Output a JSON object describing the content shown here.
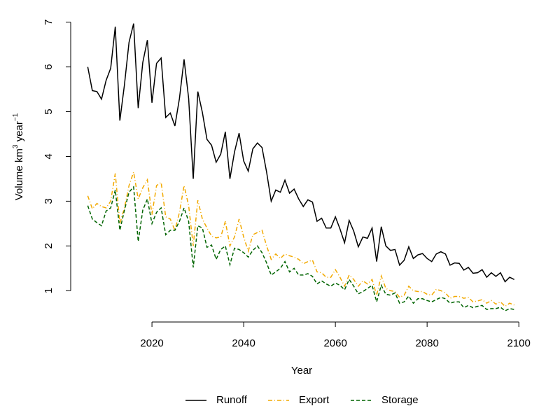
{
  "chart_data": {
    "type": "line",
    "x_label": "Year",
    "y_label_parts": [
      "Volume  km",
      "3",
      "  year",
      "−1"
    ],
    "x": [
      2006,
      2007,
      2008,
      2009,
      2010,
      2011,
      2012,
      2013,
      2014,
      2015,
      2016,
      2017,
      2018,
      2019,
      2020,
      2021,
      2022,
      2023,
      2024,
      2025,
      2026,
      2027,
      2028,
      2029,
      2030,
      2031,
      2032,
      2033,
      2034,
      2035,
      2036,
      2037,
      2038,
      2039,
      2040,
      2041,
      2042,
      2043,
      2044,
      2045,
      2046,
      2047,
      2048,
      2049,
      2050,
      2051,
      2052,
      2053,
      2054,
      2055,
      2056,
      2057,
      2058,
      2059,
      2060,
      2061,
      2062,
      2063,
      2064,
      2065,
      2066,
      2067,
      2068,
      2069,
      2070,
      2071,
      2072,
      2073,
      2074,
      2075,
      2076,
      2077,
      2078,
      2079,
      2080,
      2081,
      2082,
      2083,
      2084,
      2085,
      2086,
      2087,
      2088,
      2089,
      2090,
      2091,
      2092,
      2093,
      2094,
      2095,
      2096,
      2097,
      2098,
      2099
    ],
    "series": [
      {
        "name": "Runoff",
        "color": "#000000",
        "linestyle": "solid",
        "values": [
          6.0,
          5.47,
          5.45,
          5.28,
          5.7,
          5.97,
          6.9,
          4.8,
          5.6,
          6.55,
          6.97,
          5.08,
          6.1,
          6.6,
          5.2,
          6.08,
          6.2,
          4.87,
          4.97,
          4.68,
          5.3,
          6.17,
          5.3,
          3.5,
          5.45,
          4.98,
          4.38,
          4.25,
          3.87,
          4.05,
          4.55,
          3.5,
          4.1,
          4.52,
          3.9,
          3.67,
          4.17,
          4.3,
          4.2,
          3.65,
          3.0,
          3.25,
          3.2,
          3.47,
          3.18,
          3.27,
          3.05,
          2.88,
          3.03,
          2.98,
          2.55,
          2.62,
          2.4,
          2.4,
          2.65,
          2.38,
          2.07,
          2.57,
          2.33,
          1.98,
          2.2,
          2.17,
          2.4,
          1.65,
          2.43,
          2.0,
          1.9,
          1.92,
          1.57,
          1.68,
          1.98,
          1.72,
          1.8,
          1.83,
          1.72,
          1.65,
          1.82,
          1.87,
          1.82,
          1.57,
          1.62,
          1.61,
          1.46,
          1.52,
          1.39,
          1.4,
          1.47,
          1.3,
          1.4,
          1.32,
          1.4,
          1.2,
          1.3,
          1.25
        ]
      },
      {
        "name": "Export",
        "color": "#f2a900",
        "linestyle": "dotdash",
        "values": [
          3.12,
          2.83,
          2.95,
          2.88,
          2.85,
          3.0,
          3.62,
          2.5,
          2.85,
          3.35,
          3.65,
          3.05,
          3.3,
          3.48,
          2.7,
          3.35,
          3.42,
          2.65,
          2.6,
          2.35,
          2.75,
          3.35,
          2.9,
          2.0,
          3.02,
          2.6,
          2.4,
          2.22,
          2.18,
          2.2,
          2.55,
          2.0,
          2.2,
          2.6,
          2.2,
          1.88,
          2.25,
          2.3,
          2.35,
          2.0,
          1.7,
          1.82,
          1.72,
          1.82,
          1.78,
          1.75,
          1.7,
          1.6,
          1.65,
          1.68,
          1.42,
          1.4,
          1.3,
          1.3,
          1.47,
          1.3,
          1.1,
          1.35,
          1.25,
          1.1,
          1.22,
          1.15,
          1.25,
          0.9,
          1.33,
          1.05,
          1.0,
          0.98,
          0.85,
          0.9,
          1.1,
          1.0,
          0.98,
          0.98,
          0.92,
          0.9,
          1.03,
          1.0,
          0.95,
          0.83,
          0.87,
          0.87,
          0.83,
          0.85,
          0.75,
          0.77,
          0.8,
          0.72,
          0.78,
          0.7,
          0.75,
          0.65,
          0.72,
          0.68
        ]
      },
      {
        "name": "Storage",
        "color": "#006400",
        "linestyle": "dashed",
        "values": [
          2.9,
          2.6,
          2.52,
          2.45,
          2.78,
          2.85,
          3.25,
          2.35,
          2.8,
          3.2,
          3.32,
          2.1,
          2.8,
          3.05,
          2.5,
          2.75,
          2.85,
          2.25,
          2.35,
          2.35,
          2.55,
          2.85,
          2.55,
          1.52,
          2.45,
          2.4,
          1.97,
          2.02,
          1.7,
          1.92,
          2.0,
          1.58,
          1.95,
          1.92,
          1.85,
          1.75,
          1.9,
          2.0,
          1.85,
          1.62,
          1.35,
          1.42,
          1.5,
          1.65,
          1.42,
          1.5,
          1.35,
          1.35,
          1.38,
          1.32,
          1.15,
          1.22,
          1.15,
          1.1,
          1.17,
          1.12,
          1.02,
          1.25,
          1.1,
          0.93,
          0.98,
          1.05,
          1.12,
          0.75,
          1.12,
          0.92,
          0.9,
          0.95,
          0.72,
          0.75,
          0.88,
          0.72,
          0.82,
          0.82,
          0.78,
          0.75,
          0.8,
          0.85,
          0.82,
          0.72,
          0.75,
          0.75,
          0.62,
          0.67,
          0.62,
          0.65,
          0.67,
          0.58,
          0.6,
          0.6,
          0.63,
          0.55,
          0.6,
          0.58
        ]
      }
    ],
    "xlim": [
      2002.28,
      2102.72
    ],
    "xticks": [
      2020,
      2040,
      2060,
      2080,
      2100
    ],
    "ylim": [
      0.3,
      7.23
    ],
    "yticks": [
      1,
      2,
      3,
      4,
      5,
      6,
      7
    ],
    "grid": false,
    "legend": "bottom"
  }
}
